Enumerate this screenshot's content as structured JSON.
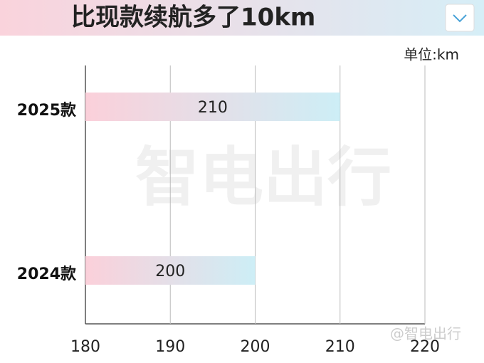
{
  "chart_data": {
    "type": "bar",
    "orientation": "horizontal",
    "title": "比现款续航多了10km",
    "unit_label": "单位:km",
    "categories": [
      "2025款",
      "2024款"
    ],
    "values": [
      210,
      200
    ],
    "color": "#fbd0da",
    "color_end": "#cdeef6",
    "xlim": [
      180,
      220
    ],
    "xticks": [
      180,
      190,
      200,
      210,
      220
    ],
    "grid": true,
    "watermark": "智电出行",
    "watermark_small": "@智电出行"
  }
}
